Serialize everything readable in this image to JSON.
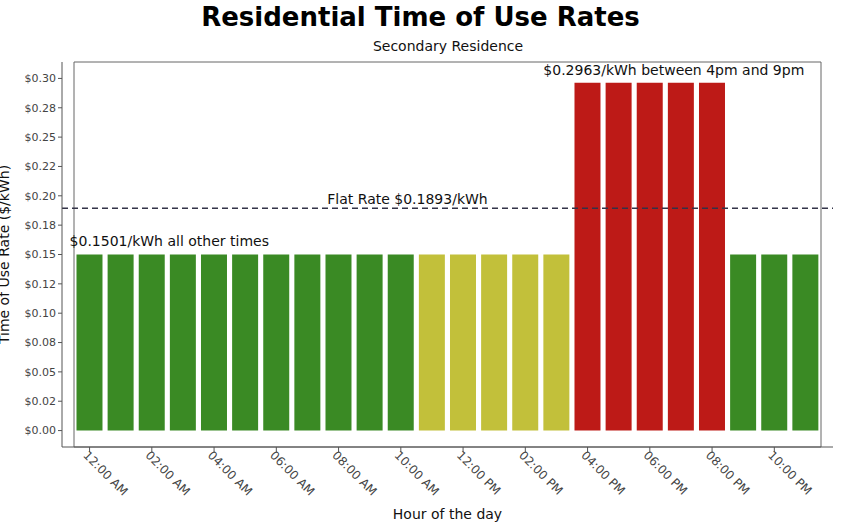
{
  "chart_data": {
    "type": "bar",
    "title": "Residential Time of Use Rates",
    "subtitle": "Secondary Residence",
    "x_label": "Hour of the day",
    "y_label": "Time of Use Rate ($/kWh)",
    "categories": [
      "12:00 AM",
      null,
      "02:00 AM",
      null,
      "04:00 AM",
      null,
      "06:00 AM",
      null,
      "08:00 AM",
      null,
      "10:00 AM",
      null,
      "12:00 PM",
      null,
      "02:00 PM",
      null,
      "04:00 PM",
      null,
      "06:00 PM",
      null,
      "08:00 PM",
      null,
      "10:00 PM",
      null
    ],
    "values": [
      0.1501,
      0.1501,
      0.1501,
      0.1501,
      0.1501,
      0.1501,
      0.1501,
      0.1501,
      0.1501,
      0.1501,
      0.1501,
      0.1501,
      0.1501,
      0.1501,
      0.1501,
      0.1501,
      0.2963,
      0.2963,
      0.2963,
      0.2963,
      0.2963,
      0.1501,
      0.1501,
      0.1501
    ],
    "colors": [
      "#3a8a24",
      "#3a8a24",
      "#3a8a24",
      "#3a8a24",
      "#3a8a24",
      "#3a8a24",
      "#3a8a24",
      "#3a8a24",
      "#3a8a24",
      "#3a8a24",
      "#3a8a24",
      "#c2c03a",
      "#c2c03a",
      "#c2c03a",
      "#c2c03a",
      "#c2c03a",
      "#bd1a17",
      "#bd1a17",
      "#bd1a17",
      "#bd1a17",
      "#bd1a17",
      "#3a8a24",
      "#3a8a24",
      "#3a8a24"
    ],
    "ylim": [
      -0.014,
      0.314
    ],
    "yticks": [
      {
        "value": 0,
        "label": "$0.00"
      },
      {
        "value": 0.025,
        "label": "$0.02"
      },
      {
        "value": 0.05,
        "label": "$0.05"
      },
      {
        "value": 0.075,
        "label": "$0.08"
      },
      {
        "value": 0.1,
        "label": "$0.10"
      },
      {
        "value": 0.125,
        "label": "$0.12"
      },
      {
        "value": 0.15,
        "label": "$0.15"
      },
      {
        "value": 0.175,
        "label": "$0.18"
      },
      {
        "value": 0.2,
        "label": "$0.20"
      },
      {
        "value": 0.225,
        "label": "$0.22"
      },
      {
        "value": 0.25,
        "label": "$0.25"
      },
      {
        "value": 0.275,
        "label": "$0.28"
      },
      {
        "value": 0.3,
        "label": "$0.30"
      }
    ],
    "grid": false,
    "reference_lines": [
      {
        "y": 0.1893,
        "label": "Flat Rate $0.1893/kWh",
        "line_style": "dashed"
      }
    ],
    "annotations": [
      {
        "text": "$0.1501/kWh all other times",
        "x": "12:00 AM",
        "y": 0.1501
      },
      {
        "text": "$0.2963/kWh between 4pm and 9pm",
        "x": "06:00 PM",
        "y": 0.2963
      }
    ]
  }
}
